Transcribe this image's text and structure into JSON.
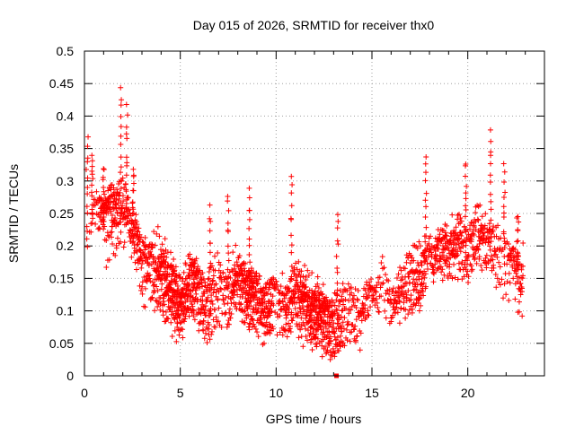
{
  "chart_data": {
    "type": "scatter",
    "title": "Day 015 of 2026, SRMTID for receiver thx0",
    "xlabel": "GPS time / hours",
    "ylabel": "SRMTID / TECUs",
    "xlim": [
      0,
      24
    ],
    "ylim": [
      0,
      0.5
    ],
    "xticks": [
      0,
      5,
      10,
      15,
      20
    ],
    "yticks": [
      0,
      0.05,
      0.1,
      0.15,
      0.2,
      0.25,
      0.3,
      0.35,
      0.4,
      0.45,
      0.5
    ],
    "grid": true,
    "marker_color": "#ff0000",
    "marker": "plus",
    "profile": [
      [
        0.0,
        0.17
      ],
      [
        0.5,
        0.25
      ],
      [
        1.0,
        0.23
      ],
      [
        1.5,
        0.24
      ],
      [
        2.0,
        0.26
      ],
      [
        2.5,
        0.22
      ],
      [
        3.0,
        0.16
      ],
      [
        3.5,
        0.16
      ],
      [
        4.0,
        0.15
      ],
      [
        4.5,
        0.12
      ],
      [
        5.0,
        0.11
      ],
      [
        5.5,
        0.14
      ],
      [
        6.0,
        0.12
      ],
      [
        6.5,
        0.1
      ],
      [
        7.0,
        0.13
      ],
      [
        7.5,
        0.11
      ],
      [
        8.0,
        0.14
      ],
      [
        8.5,
        0.12
      ],
      [
        9.0,
        0.12
      ],
      [
        9.5,
        0.1
      ],
      [
        10.0,
        0.11
      ],
      [
        10.5,
        0.1
      ],
      [
        11.0,
        0.12
      ],
      [
        11.5,
        0.1
      ],
      [
        12.0,
        0.09
      ],
      [
        12.5,
        0.08
      ],
      [
        13.0,
        0.07
      ],
      [
        13.5,
        0.09
      ],
      [
        14.0,
        0.08
      ],
      [
        14.5,
        0.09
      ],
      [
        15.0,
        0.12
      ],
      [
        15.5,
        0.14
      ],
      [
        16.0,
        0.1
      ],
      [
        16.5,
        0.12
      ],
      [
        17.0,
        0.14
      ],
      [
        17.5,
        0.15
      ],
      [
        18.0,
        0.17
      ],
      [
        18.5,
        0.18
      ],
      [
        19.0,
        0.19
      ],
      [
        19.5,
        0.2
      ],
      [
        20.0,
        0.18
      ],
      [
        20.5,
        0.22
      ],
      [
        21.0,
        0.2
      ],
      [
        21.5,
        0.19
      ],
      [
        22.0,
        0.17
      ],
      [
        22.5,
        0.15
      ],
      [
        22.9,
        0.14
      ]
    ],
    "spikes": [
      [
        0.15,
        0.37
      ],
      [
        0.4,
        0.34
      ],
      [
        1.0,
        0.32
      ],
      [
        1.9,
        0.44
      ],
      [
        2.2,
        0.41
      ],
      [
        2.55,
        0.32
      ],
      [
        6.55,
        0.26
      ],
      [
        7.5,
        0.28
      ],
      [
        8.6,
        0.29
      ],
      [
        10.8,
        0.31
      ],
      [
        13.2,
        0.25
      ],
      [
        17.8,
        0.34
      ],
      [
        19.9,
        0.33
      ],
      [
        21.2,
        0.38
      ],
      [
        21.9,
        0.32
      ],
      [
        22.6,
        0.25
      ]
    ],
    "square_point": [
      13.15,
      0.0
    ]
  }
}
